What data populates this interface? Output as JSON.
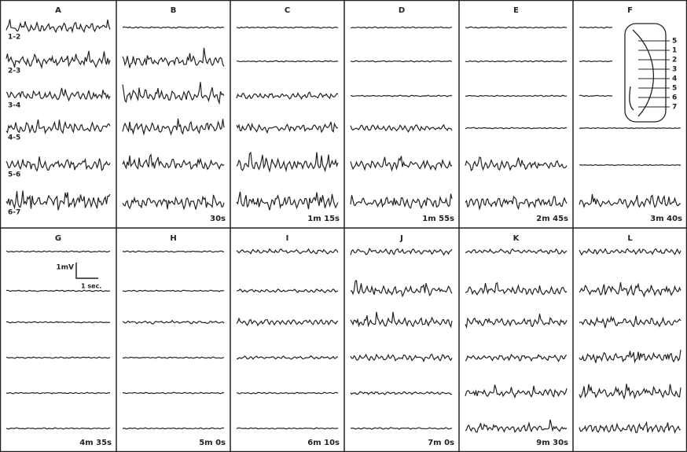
{
  "panels": [
    {
      "letter": "A"
    },
    {
      "letter": "B",
      "time": "30s"
    },
    {
      "letter": "C",
      "time": "1m 15s"
    },
    {
      "letter": "D",
      "time": "1m 55s"
    },
    {
      "letter": "E",
      "time": "2m 45s"
    },
    {
      "letter": "F",
      "time": "3m 40s"
    },
    {
      "letter": "G",
      "time": "4m 35s"
    },
    {
      "letter": "H",
      "time": "5m 0s"
    },
    {
      "letter": "I",
      "time": "6m 10s"
    },
    {
      "letter": "J",
      "time": "7m 0s"
    },
    {
      "letter": "K",
      "time": "9m 30s"
    },
    {
      "letter": "L"
    }
  ],
  "channels": [
    "1-2",
    "2-3",
    "3-4",
    "4-5",
    "5-6",
    "6-7"
  ],
  "inset_labels": [
    "5",
    "1",
    "2",
    "3",
    "4",
    "5",
    "6",
    "7"
  ],
  "scale": {
    "voltage": "1mV",
    "time": "1 sec."
  }
}
